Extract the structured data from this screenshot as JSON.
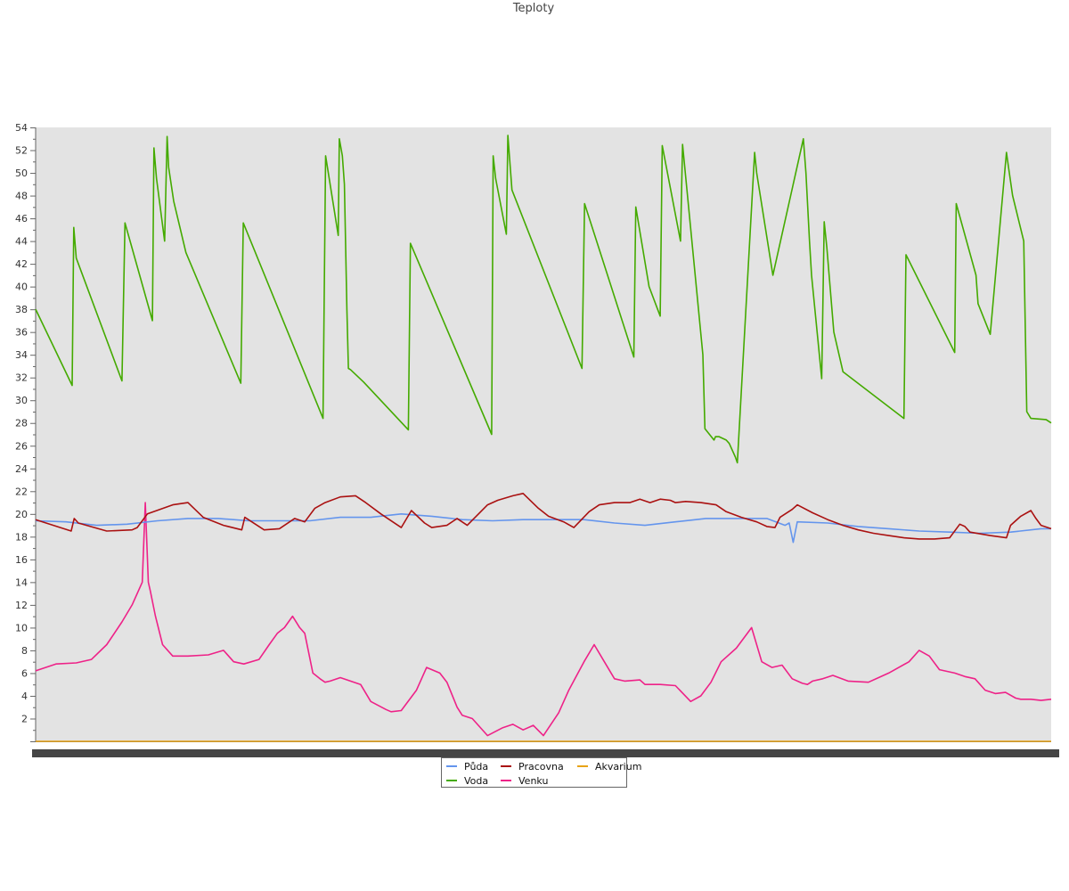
{
  "chart_data": {
    "type": "line",
    "title": "Teploty",
    "xlabel": "",
    "ylabel": "",
    "ylim": [
      0,
      54
    ],
    "yticks": [
      2,
      4,
      6,
      8,
      10,
      12,
      14,
      16,
      18,
      20,
      22,
      24,
      26,
      28,
      30,
      32,
      34,
      36,
      38,
      40,
      42,
      44,
      46,
      48,
      50,
      52,
      54
    ],
    "xlim": [
      0,
      100
    ],
    "grid": false,
    "legend_position": "bottom-center",
    "background": "#e3e3e3",
    "series": [
      {
        "name": "Půda",
        "color": "#6495ed",
        "x": [
          0,
          3,
          6,
          9,
          12,
          15,
          18,
          21,
          24,
          27,
          30,
          33,
          36,
          39,
          42,
          45,
          48,
          51,
          54,
          57,
          60,
          63,
          66,
          69,
          72,
          73.8,
          74.2,
          74.6,
          75,
          78,
          81,
          84,
          87,
          90,
          93,
          96,
          99,
          100
        ],
        "y": [
          19.4,
          19.3,
          19.0,
          19.1,
          19.4,
          19.6,
          19.6,
          19.4,
          19.4,
          19.4,
          19.7,
          19.7,
          20.0,
          19.8,
          19.5,
          19.4,
          19.5,
          19.5,
          19.5,
          19.2,
          19.0,
          19.3,
          19.6,
          19.6,
          19.6,
          19.0,
          19.2,
          17.5,
          19.3,
          19.2,
          18.9,
          18.7,
          18.5,
          18.4,
          18.3,
          18.4,
          18.7,
          18.7
        ]
      },
      {
        "name": "Voda",
        "color": "#44aa00",
        "x": [
          0,
          3.6,
          3.75,
          4.0,
          8.5,
          8.8,
          11.5,
          11.65,
          11.9,
          12.7,
          12.95,
          13.1,
          13.6,
          14.8,
          20.2,
          20.45,
          28.3,
          28.55,
          29.8,
          29.9,
          30.2,
          30.4,
          30.65,
          30.8,
          31.0,
          32.3,
          36.7,
          36.9,
          44.9,
          45.05,
          45.3,
          46.35,
          46.5,
          46.9,
          53.8,
          54.05,
          58.9,
          59.1,
          60.4,
          61.5,
          61.7,
          63.5,
          63.7,
          65.7,
          65.9,
          66.8,
          66.95,
          67.3,
          68.0,
          68.3,
          68.9,
          69.1,
          70.8,
          71.0,
          72.6,
          75.6,
          75.85,
          76.2,
          76.4,
          77.4,
          77.65,
          77.9,
          78.6,
          79.5,
          85.5,
          85.7,
          90.5,
          90.65,
          92.6,
          92.8,
          94.0,
          95.6,
          95.8,
          96.2,
          97.3,
          97.6,
          98.0,
          99.5,
          100
        ],
        "y": [
          38.0,
          31.3,
          45.2,
          42.5,
          31.7,
          45.6,
          37.0,
          52.2,
          49.5,
          44.0,
          53.2,
          50.5,
          47.5,
          43.0,
          31.5,
          45.6,
          28.4,
          51.5,
          44.5,
          53.0,
          51.5,
          49.0,
          38.0,
          32.8,
          32.7,
          31.6,
          27.4,
          43.8,
          27.0,
          51.5,
          49.5,
          44.6,
          53.3,
          48.5,
          32.8,
          47.3,
          33.8,
          47.0,
          40.0,
          37.4,
          52.4,
          44.0,
          52.5,
          34.0,
          27.5,
          26.5,
          26.8,
          26.8,
          26.5,
          26.2,
          25.0,
          24.5,
          51.8,
          50.0,
          41.0,
          53.0,
          50.0,
          44.0,
          41.0,
          31.9,
          45.7,
          43.5,
          36.0,
          32.5,
          28.4,
          42.8,
          34.2,
          47.3,
          41.0,
          38.5,
          35.8,
          51.8,
          50.5,
          48.0,
          44.0,
          29.0,
          28.4,
          28.3,
          28.0
        ]
      },
      {
        "name": "Pracovna",
        "color": "#aa1111",
        "x": [
          0,
          3.5,
          3.8,
          4.2,
          7.0,
          9.5,
          10.0,
          11.0,
          13.5,
          15.0,
          16.5,
          18.5,
          20.3,
          20.6,
          22.5,
          24.0,
          25.5,
          26.5,
          27.5,
          28.5,
          30.0,
          31.5,
          32.5,
          34.0,
          36.0,
          37.0,
          38.3,
          39.0,
          40.5,
          41.5,
          42.5,
          44.5,
          45.5,
          47.0,
          48.0,
          49.5,
          50.5,
          52.0,
          53.0,
          54.5,
          55.5,
          57.0,
          58.5,
          59.5,
          60.5,
          61.5,
          62.5,
          63.0,
          64.0,
          65.5,
          67.0,
          68.0,
          69.5,
          71.0,
          72.0,
          72.8,
          73.3,
          74.5,
          75.0,
          76.5,
          78.0,
          79.5,
          81.0,
          82.5,
          84.0,
          85.5,
          87.0,
          88.5,
          90.0,
          91.0,
          91.5,
          92.0,
          94.0,
          95.6,
          96.0,
          97.0,
          98.0,
          98.5,
          99.0,
          100
        ],
        "y": [
          19.5,
          18.5,
          19.6,
          19.2,
          18.5,
          18.6,
          18.8,
          20.0,
          20.8,
          21.0,
          19.7,
          19.0,
          18.6,
          19.7,
          18.6,
          18.7,
          19.6,
          19.3,
          20.5,
          21.0,
          21.5,
          21.6,
          21.0,
          20.0,
          18.8,
          20.3,
          19.2,
          18.8,
          19.0,
          19.6,
          19.0,
          20.8,
          21.2,
          21.6,
          21.8,
          20.5,
          19.8,
          19.3,
          18.8,
          20.2,
          20.8,
          21.0,
          21.0,
          21.3,
          21.0,
          21.3,
          21.2,
          21.0,
          21.1,
          21.0,
          20.8,
          20.2,
          19.7,
          19.3,
          18.9,
          18.8,
          19.7,
          20.4,
          20.8,
          20.1,
          19.5,
          19.0,
          18.6,
          18.3,
          18.1,
          17.9,
          17.8,
          17.8,
          17.9,
          19.1,
          18.9,
          18.4,
          18.1,
          17.9,
          19.0,
          19.8,
          20.3,
          19.6,
          19.0,
          18.7
        ]
      },
      {
        "name": "Venku",
        "color": "#ee2288",
        "x": [
          0,
          2,
          4,
          5.5,
          7,
          8.5,
          9.5,
          10.5,
          10.8,
          11.1,
          11.3,
          11.8,
          12.5,
          13.5,
          15,
          17,
          18.5,
          19.5,
          20.5,
          22,
          23,
          23.8,
          24.5,
          25.3,
          26,
          26.5,
          27.3,
          28.0,
          28.5,
          29.0,
          30,
          32,
          33,
          34.5,
          35,
          36,
          37.5,
          38.5,
          39.8,
          40.5,
          41.5,
          42,
          43,
          44.5,
          46,
          47,
          48,
          49,
          50,
          51.5,
          52.5,
          54,
          55,
          56,
          57,
          58,
          59.5,
          60,
          61.5,
          63,
          64.5,
          65.5,
          66.5,
          67.5,
          69,
          70.5,
          71.5,
          72.5,
          73.5,
          74.5,
          75.5,
          76,
          76.5,
          77.5,
          78.5,
          80,
          82,
          84,
          86,
          87,
          88,
          89,
          90.5,
          91.5,
          92.5,
          93.5,
          94.5,
          95.5,
          96.5,
          97,
          98,
          99,
          100
        ],
        "y": [
          6.2,
          6.8,
          6.9,
          7.2,
          8.5,
          10.5,
          12.0,
          14.0,
          21.0,
          14.0,
          13.2,
          11.0,
          8.5,
          7.5,
          7.5,
          7.6,
          8.0,
          7.0,
          6.8,
          7.2,
          8.5,
          9.5,
          10.0,
          11.0,
          10.0,
          9.5,
          6.0,
          5.5,
          5.2,
          5.3,
          5.6,
          5.0,
          3.5,
          2.8,
          2.6,
          2.7,
          4.5,
          6.5,
          6.0,
          5.2,
          3.0,
          2.3,
          2.0,
          0.5,
          1.2,
          1.5,
          1.0,
          1.4,
          0.5,
          2.5,
          4.5,
          7.0,
          8.5,
          7.0,
          5.5,
          5.3,
          5.4,
          5.0,
          5.0,
          4.9,
          3.5,
          4.0,
          5.2,
          7.0,
          8.2,
          10.0,
          7.0,
          6.5,
          6.7,
          5.5,
          5.1,
          5.0,
          5.3,
          5.5,
          5.8,
          5.3,
          5.2,
          6.0,
          7.0,
          8.0,
          7.5,
          6.3,
          6.0,
          5.7,
          5.5,
          4.5,
          4.2,
          4.3,
          3.8,
          3.7,
          3.7,
          3.6,
          3.7
        ]
      },
      {
        "name": "Akvarium",
        "color": "#e8a317",
        "x": [
          0,
          100
        ],
        "y": [
          0,
          0
        ]
      }
    ]
  }
}
